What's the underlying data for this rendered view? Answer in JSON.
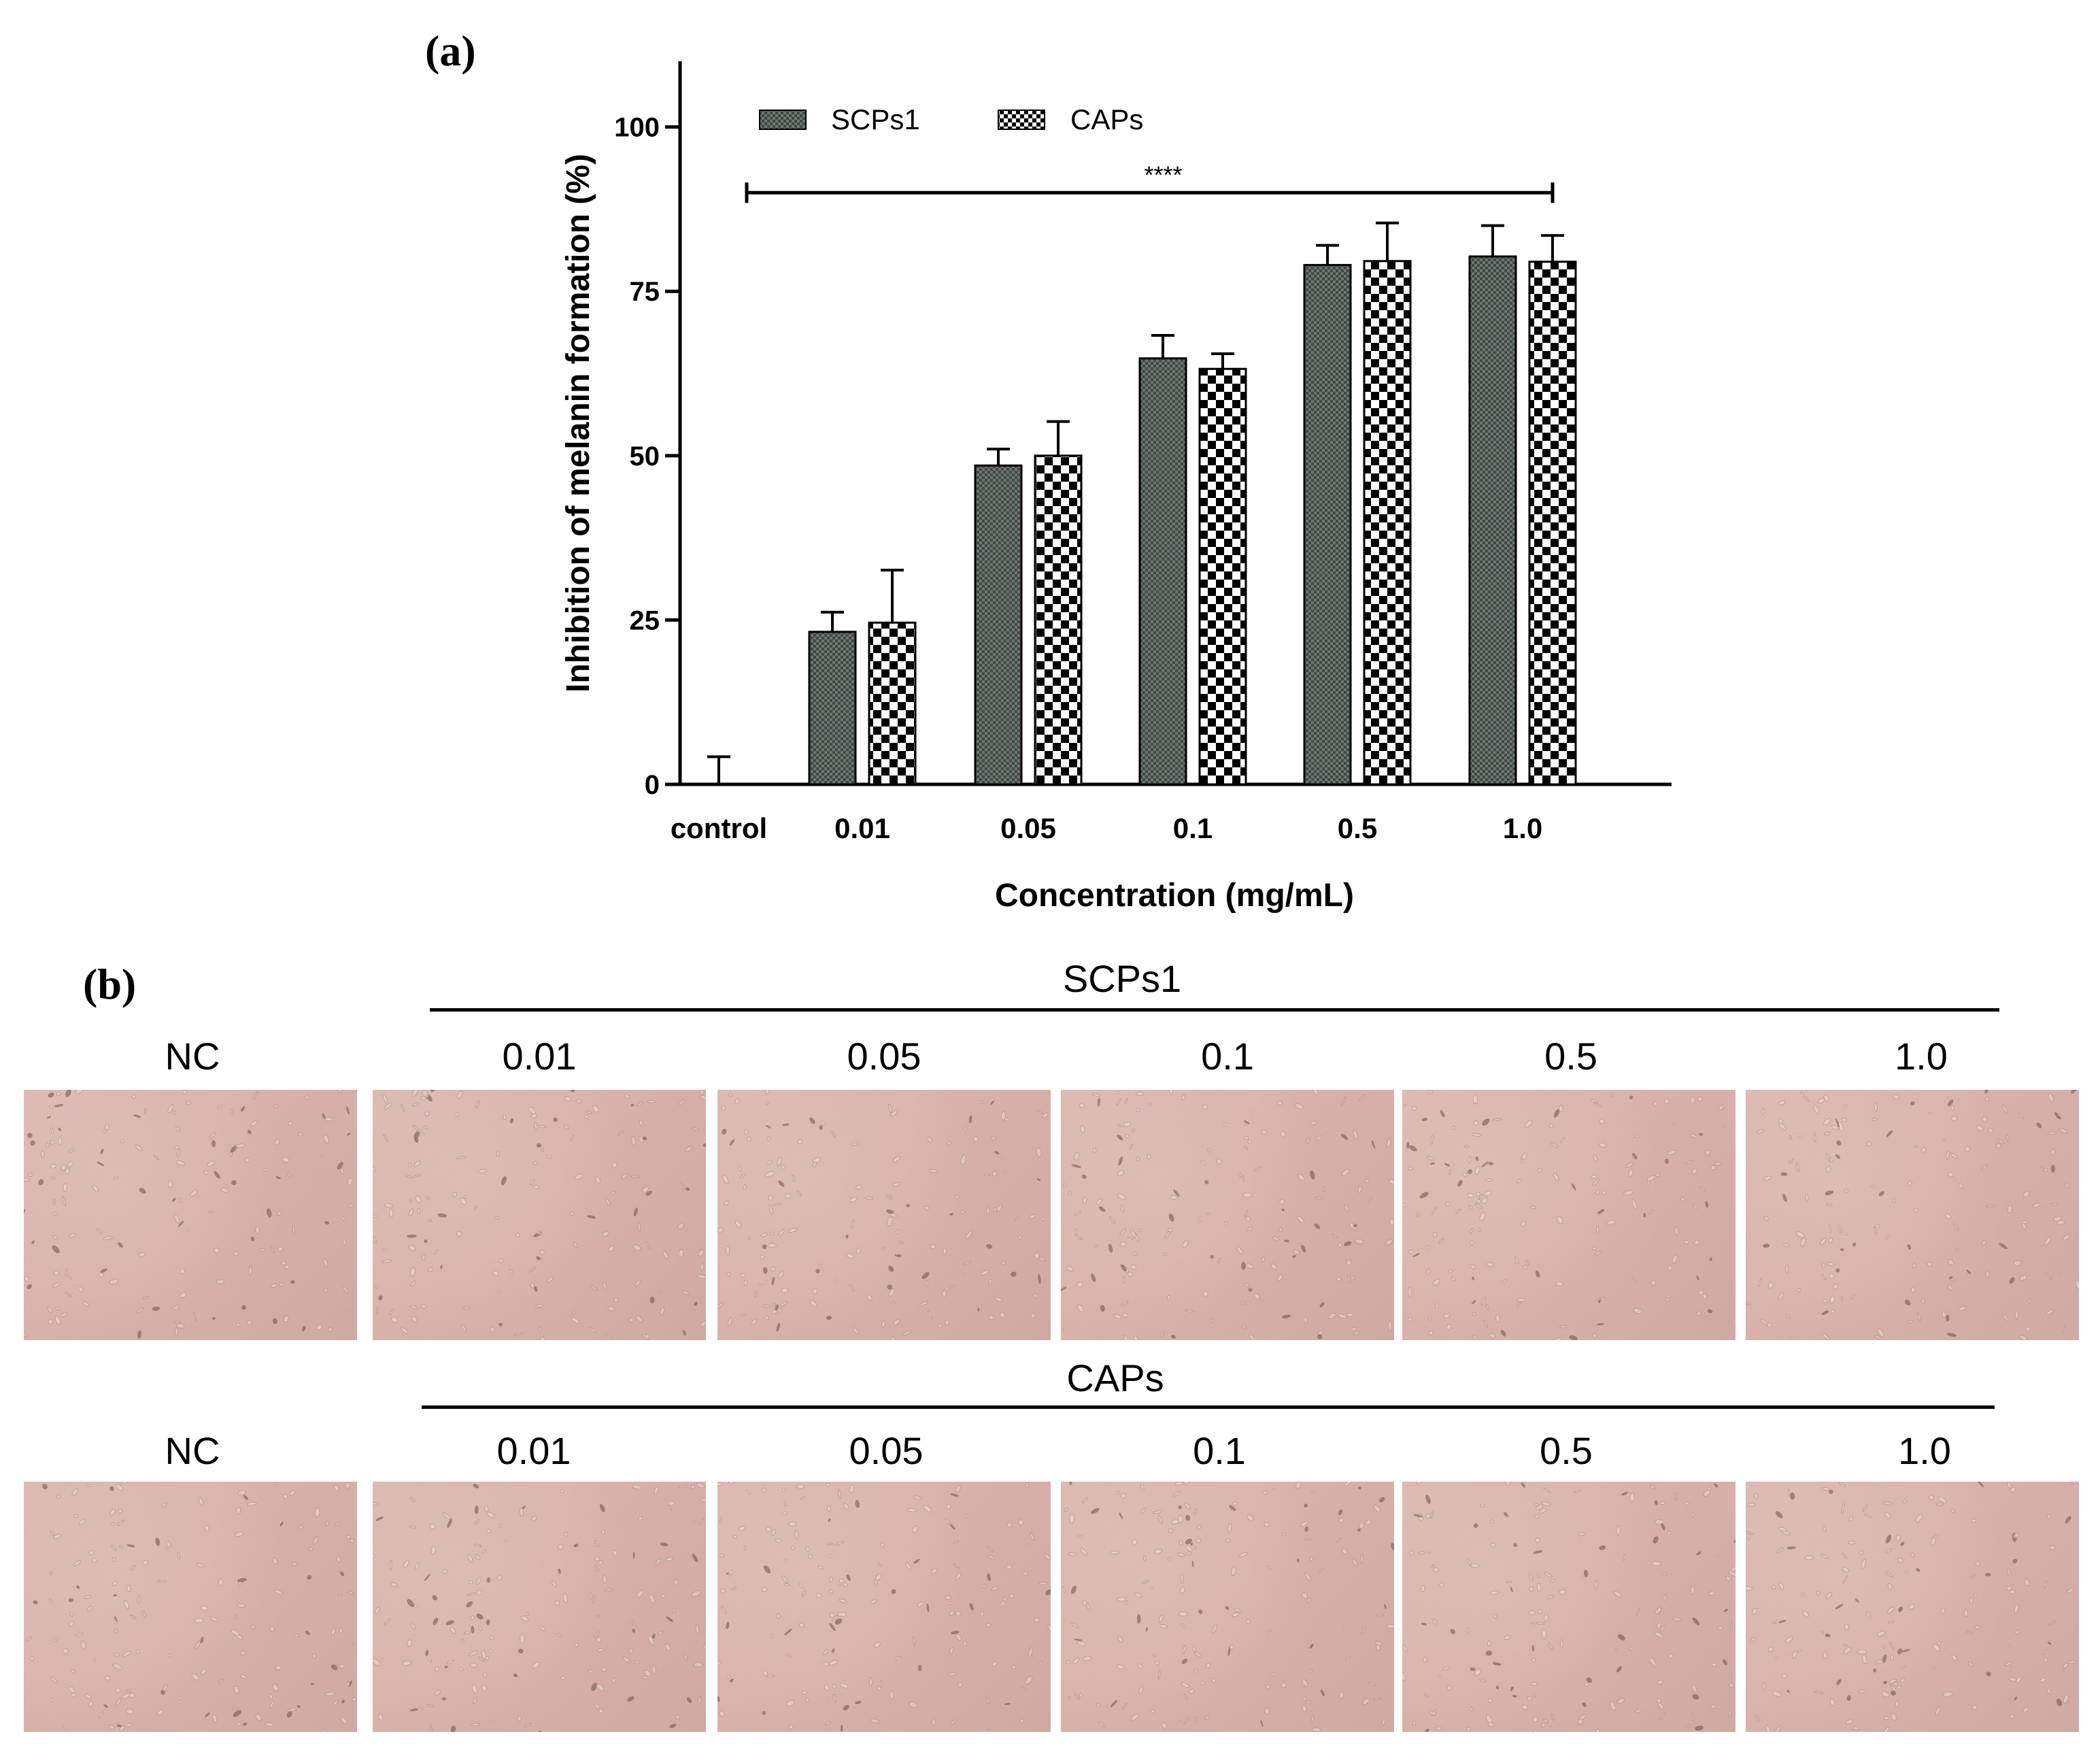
{
  "panel_a": {
    "label": "(a)"
  },
  "panel_b": {
    "label": "(b)"
  },
  "chart_data": {
    "type": "bar",
    "title": "",
    "xlabel": "Concentration (mg/mL)",
    "ylabel": "Inhibition of melanin formation (%)",
    "categories": [
      "control",
      "0.01",
      "0.05",
      "0.1",
      "0.5",
      "1.0"
    ],
    "ylim": [
      0,
      110
    ],
    "yticks": [
      0,
      25,
      50,
      75,
      100
    ],
    "series": [
      {
        "name": "SCPs1",
        "pattern": "fine-checker",
        "values": [
          0,
          23.2,
          48.5,
          64.8,
          79.0,
          80.3
        ],
        "errors": [
          4.2,
          3.0,
          2.5,
          3.5,
          3.0,
          4.7
        ]
      },
      {
        "name": "CAPs",
        "pattern": "coarse-checker",
        "values": [
          null,
          24.6,
          50.0,
          63.2,
          79.6,
          79.5
        ],
        "errors": [
          null,
          8.0,
          5.2,
          2.3,
          5.8,
          4.0
        ]
      }
    ],
    "significance": {
      "from": "control",
      "to": "1.0",
      "level": 90,
      "label": "****"
    },
    "legend_position": "top-left",
    "colors": {
      "dark_bar": "#55605b",
      "checker_dark": "#000000",
      "checker_light": "#ffffff"
    }
  },
  "micrographs": {
    "scps1": {
      "title": "SCPs1",
      "nc_label": "NC",
      "concentrations": [
        "0.01",
        "0.05",
        "0.1",
        "0.5",
        "1.0"
      ]
    },
    "caps": {
      "title": "CAPs",
      "nc_label": "NC",
      "concentrations": [
        "0.01",
        "0.05",
        "0.1",
        "0.5",
        "1.0"
      ]
    },
    "photo_color": "#d8b4ac"
  }
}
